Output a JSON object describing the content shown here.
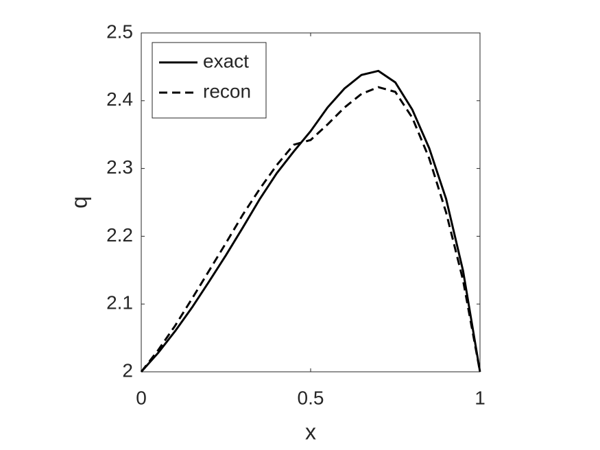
{
  "chart_data": {
    "type": "line",
    "x_label": "x",
    "y_label": "q",
    "x": [
      0,
      0.05,
      0.1,
      0.15,
      0.2,
      0.25,
      0.3,
      0.35,
      0.4,
      0.45,
      0.5,
      0.55,
      0.6,
      0.65,
      0.7,
      0.75,
      0.8,
      0.85,
      0.9,
      0.95,
      1
    ],
    "series": [
      {
        "name": "exact",
        "color": "#000000",
        "dash": "solid",
        "values": [
          2.0,
          2.028,
          2.06,
          2.095,
          2.133,
          2.172,
          2.213,
          2.255,
          2.293,
          2.325,
          2.355,
          2.39,
          2.418,
          2.438,
          2.444,
          2.427,
          2.387,
          2.33,
          2.255,
          2.149,
          2.0
        ]
      },
      {
        "name": "recon",
        "color": "#000000",
        "dash": "dashed",
        "values": [
          2.0,
          2.032,
          2.068,
          2.108,
          2.149,
          2.19,
          2.232,
          2.27,
          2.305,
          2.335,
          2.342,
          2.365,
          2.39,
          2.41,
          2.42,
          2.413,
          2.375,
          2.315,
          2.235,
          2.135,
          2.0
        ]
      }
    ],
    "xlim": [
      0,
      1
    ],
    "xticks": [
      0,
      0.5,
      1
    ],
    "ylim": [
      2,
      2.5
    ],
    "yticks": [
      2,
      2.1,
      2.2,
      2.3,
      2.4,
      2.5
    ],
    "legend": "upper-left",
    "grid": false
  }
}
